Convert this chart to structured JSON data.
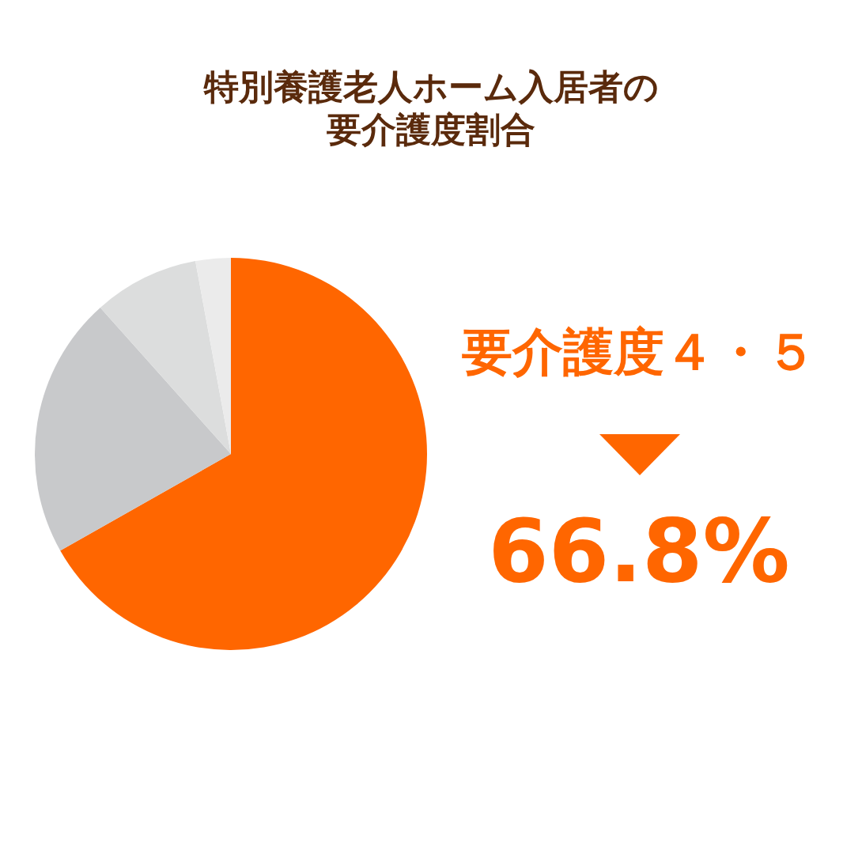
{
  "chart_data": {
    "type": "pie",
    "title": "特別養護老人ホーム入居者の要介護度割合",
    "categories": [
      null,
      null,
      null,
      null
    ],
    "values": [
      66.8,
      21.6,
      8.7,
      2.9
    ],
    "colors": [
      "#ff6600",
      "#c8c9cb",
      "#dcdddd",
      "#ebebeb"
    ],
    "annotations": [
      "要介護度４・５",
      "66.8%"
    ]
  }
}
